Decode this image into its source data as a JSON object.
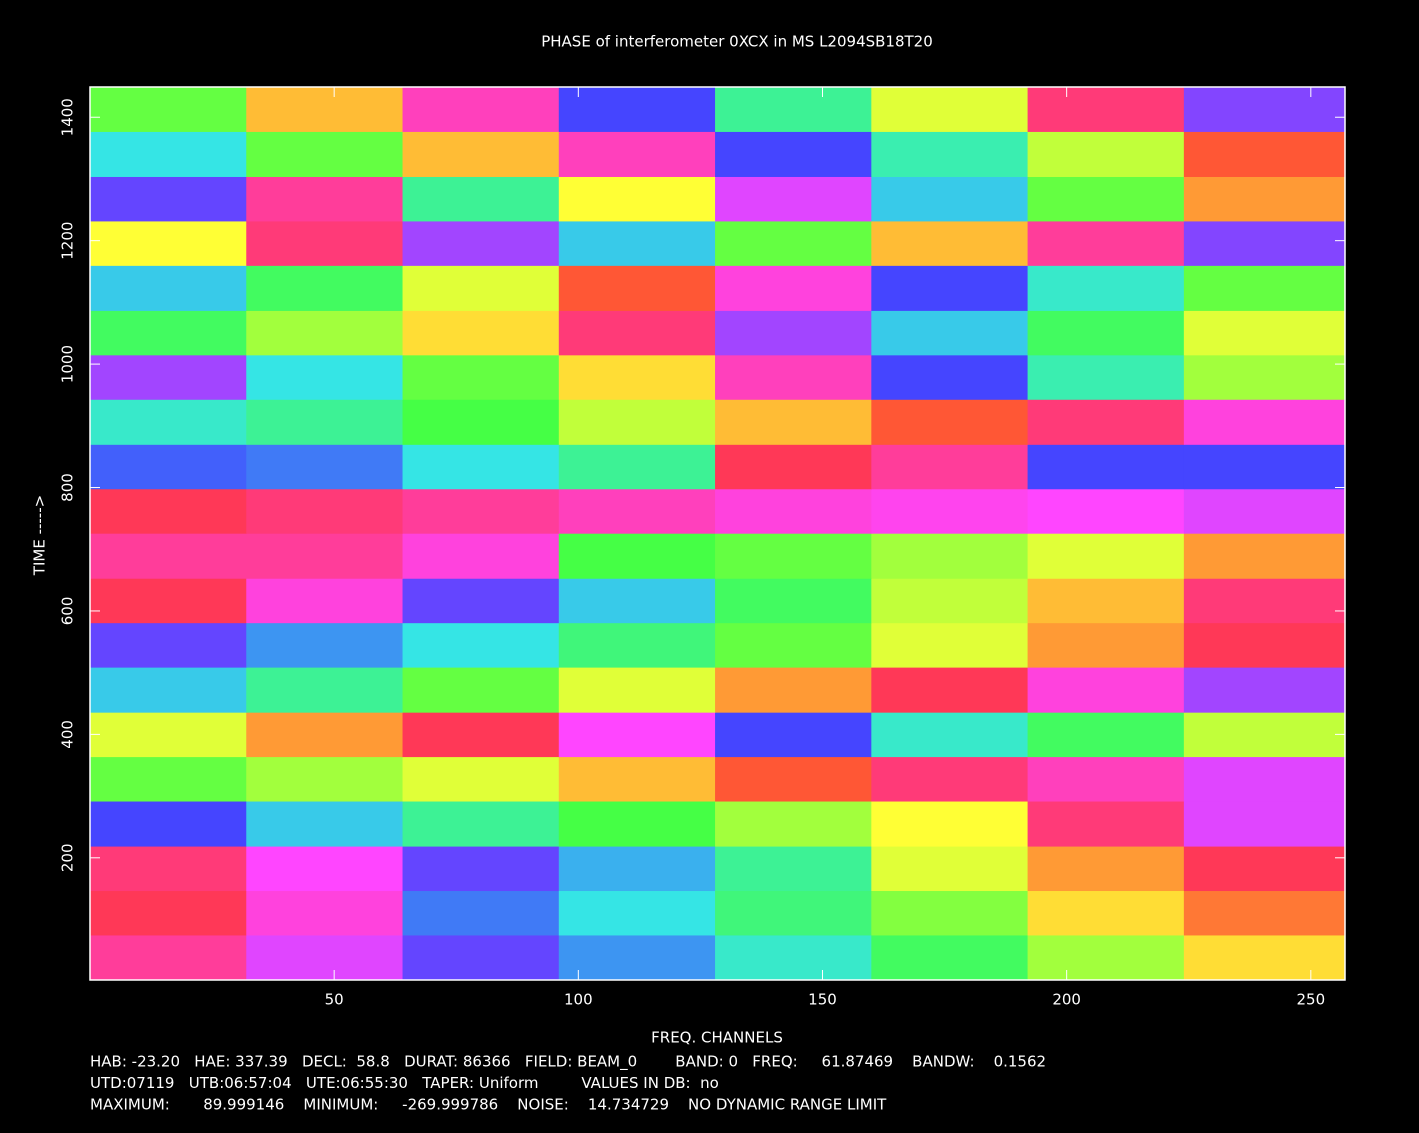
{
  "chart_data": {
    "type": "heatmap",
    "title": "PHASE of interferometer 0XCX in MS L2094SB18T20",
    "x_label": "FREQ. CHANNELS",
    "y_label": "TIME ----->",
    "xlim": [
      0,
      257
    ],
    "ylim": [
      2,
      1449
    ],
    "xticks": [
      50,
      100,
      150,
      200,
      250
    ],
    "yticks": [
      200,
      400,
      600,
      800,
      1000,
      1200,
      1400
    ],
    "x_edges": [
      0,
      32,
      64,
      96,
      128,
      160,
      192,
      224,
      257
    ],
    "y_edges": [
      2,
      75,
      147,
      219,
      292,
      364,
      436,
      509,
      581,
      653,
      726,
      798,
      870,
      943,
      1015,
      1087,
      1160,
      1232,
      1304,
      1377,
      1449
    ],
    "zlim": [
      -269.999786,
      89.999146
    ],
    "colormap": [
      "#ff3535",
      "#ff45ff",
      "#4545ff",
      "#35e5e5",
      "#45ff45",
      "#ffff35",
      "#ff3535"
    ],
    "values": [
      [
        -240,
        -200,
        -160,
        -120,
        -80,
        -40,
        0,
        40
      ],
      [
        -260,
        -220,
        -130,
        -90,
        -50,
        -10,
        40,
        70
      ],
      [
        -250,
        -210,
        -160,
        -110,
        -60,
        20,
        60,
        -260
      ],
      [
        -150,
        -100,
        -60,
        -30,
        0,
        30,
        -250,
        -200
      ],
      [
        -20,
        0,
        20,
        50,
        80,
        -250,
        -230,
        -200
      ],
      [
        20,
        60,
        -260,
        -210,
        -150,
        -80,
        -40,
        10
      ],
      [
        -100,
        -60,
        -20,
        20,
        60,
        -260,
        -220,
        -180
      ],
      [
        -160,
        -120,
        -90,
        -50,
        -20,
        20,
        60,
        -260
      ],
      [
        -260,
        -220,
        -160,
        -100,
        -40,
        10,
        50,
        -250
      ],
      [
        -240,
        -240,
        -220,
        -30,
        -20,
        0,
        20,
        60
      ],
      [
        -260,
        -250,
        -240,
        -230,
        -220,
        -215,
        -210,
        -200
      ],
      [
        -140,
        -130,
        -90,
        -60,
        -260,
        -240,
        -150,
        -150
      ],
      [
        -80,
        -60,
        -30,
        10,
        50,
        80,
        -250,
        -220
      ],
      [
        -180,
        -90,
        -20,
        40,
        -230,
        -150,
        -70,
        0
      ],
      [
        -40,
        0,
        40,
        -250,
        -180,
        -100,
        -40,
        20
      ],
      [
        -100,
        -40,
        20,
        80,
        -220,
        -150,
        -80,
        -20
      ],
      [
        30,
        -250,
        -180,
        -100,
        -20,
        50,
        -240,
        -170
      ],
      [
        -160,
        -240,
        -60,
        30,
        -200,
        -100,
        -20,
        60
      ],
      [
        -90,
        -20,
        50,
        -230,
        -150,
        -70,
        10,
        80
      ],
      [
        -20,
        50,
        -230,
        -150,
        -60,
        20,
        -250,
        -170
      ]
    ],
    "info_lines": [
      "HAB: -23.20   HAE: 337.39   DECL:  58.8   DURAT: 86366   FIELD: BEAM_0        BAND: 0   FREQ:     61.87469    BANDW:    0.1562",
      "UTD:07119   UTB:06:57:04   UTE:06:55:30   TAPER: Uniform         VALUES IN DB:  no",
      "MAXIMUM:       89.999146    MINIMUM:     -269.999786    NOISE:    14.734729    NO DYNAMIC RANGE LIMIT"
    ]
  }
}
